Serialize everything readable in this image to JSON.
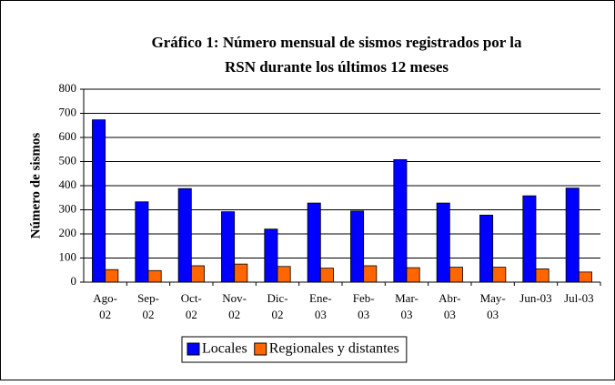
{
  "chart_data": {
    "type": "bar",
    "title": [
      "Gráfico 1: Número mensual de sismos registrados por la",
      "RSN durante los últimos 12 meses"
    ],
    "y_label": "Número de sismos",
    "categories": [
      "Ago-02",
      "Sep-02",
      "Oct-02",
      "Nov-02",
      "Dic-02",
      "Ene-03",
      "Feb-03",
      "Mar-03",
      "Abr-03",
      "May-03",
      "Jun-03",
      "Jul-03"
    ],
    "series": [
      {
        "name": "Locales",
        "color": "#0000ff",
        "values": [
          673,
          333,
          388,
          292,
          220,
          328,
          295,
          508,
          328,
          278,
          358,
          390
        ]
      },
      {
        "name": "Regionales y distantes",
        "color": "#ff6600",
        "values": [
          52,
          48,
          68,
          75,
          65,
          58,
          68,
          60,
          62,
          62,
          55,
          42
        ]
      }
    ],
    "ylim": [
      0,
      800
    ],
    "yticks": [
      0,
      100,
      200,
      300,
      400,
      500,
      600,
      700,
      800
    ],
    "grid": true,
    "legend": "bottom"
  }
}
